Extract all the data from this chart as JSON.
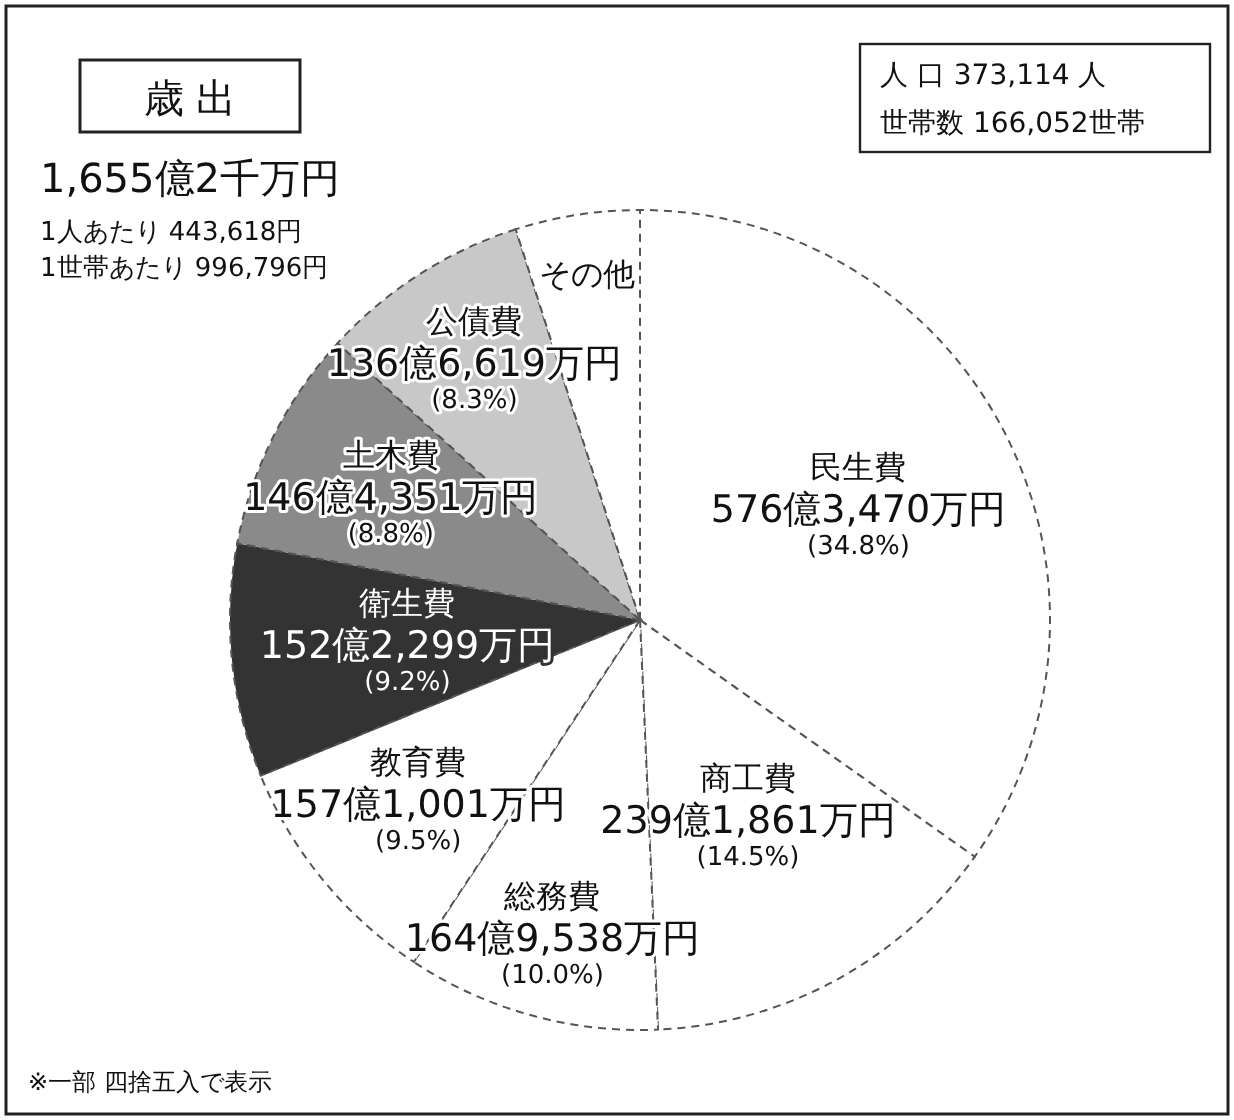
{
  "chart_data": {
    "type": "pie",
    "title": "歳 出",
    "subtitle": "1,655億2千万円",
    "categories": [
      "民生費",
      "商工費",
      "総務費",
      "教育費",
      "衛生費",
      "土木費",
      "公債費",
      "その他"
    ],
    "values": [
      34.8,
      14.5,
      10.0,
      9.5,
      9.2,
      8.8,
      8.3,
      4.9
    ],
    "colors": [
      "#ffffff",
      "#ffffff",
      "#ffffff",
      "#ffffff",
      "#333333",
      "#8a8a8a",
      "#c8c8c8",
      "#ffffff"
    ],
    "value_labels": [
      "(34.8%)",
      "(14.5%)",
      "(10.0%)",
      "(9.5%)",
      "(9.2%)",
      "(8.8%)",
      "(8.3%)",
      null
    ],
    "legend": false,
    "annotations": [
      {
        "text": "576億3,470万円",
        "x": "民生費"
      },
      {
        "text": "239億1,861万円",
        "x": "商工費"
      },
      {
        "text": "164億9,538万円",
        "x": "総務費"
      },
      {
        "text": "157億1,001万円",
        "x": "教育費"
      },
      {
        "text": "152億2,299万円",
        "x": "衛生費"
      },
      {
        "text": "146億4,351万円",
        "x": "土木費"
      },
      {
        "text": "136億6,619万円",
        "x": "公債費"
      },
      "1人あたり 443,618円",
      "1世帯あたり 996,796円",
      "人 口 373,114 人",
      "世帯数 166,052世帯",
      "※一部 四捨五入で表示"
    ]
  }
}
